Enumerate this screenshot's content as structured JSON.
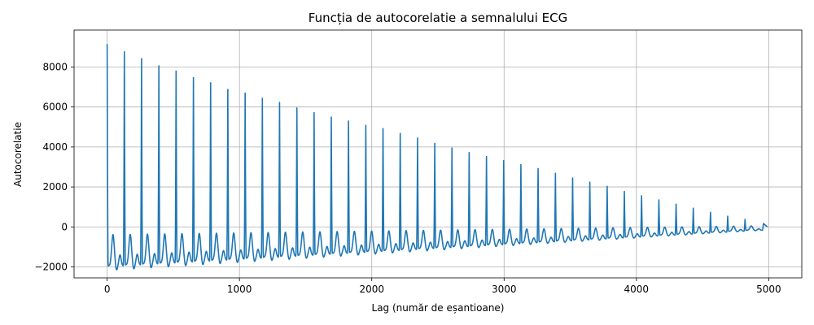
{
  "chart_data": {
    "type": "line",
    "title": "Funcția de autocorelatie a semnalului ECG",
    "xlabel": "Lag (număr de eșantioane)",
    "ylabel": "Autocorelatie",
    "xlim": [
      -250,
      5250
    ],
    "ylim": [
      -2550,
      9850
    ],
    "xticks": [
      0,
      1000,
      2000,
      3000,
      4000,
      5000
    ],
    "yticks": [
      -2000,
      0,
      2000,
      4000,
      6000,
      8000
    ],
    "xtick_labels": [
      "0",
      "1000",
      "2000",
      "3000",
      "4000",
      "5000"
    ],
    "ytick_labels": [
      "−2000",
      "0",
      "2000",
      "4000",
      "6000",
      "8000"
    ],
    "grid": true,
    "legend": "none",
    "series": [
      {
        "color": "#1f77b4",
        "x_start": 0,
        "x_end": 4990,
        "initial_value": 9150,
        "beat_period_lags": 130.3,
        "peaks": [
          {
            "lag": 130,
            "value": 8760
          },
          {
            "lag": 260,
            "value": 8420
          },
          {
            "lag": 391,
            "value": 8060
          },
          {
            "lag": 521,
            "value": 7800
          },
          {
            "lag": 652,
            "value": 7470
          },
          {
            "lag": 782,
            "value": 7210
          },
          {
            "lag": 912,
            "value": 6880
          },
          {
            "lag": 1043,
            "value": 6700
          },
          {
            "lag": 1173,
            "value": 6440
          },
          {
            "lag": 1303,
            "value": 6230
          },
          {
            "lag": 1434,
            "value": 5950
          },
          {
            "lag": 1564,
            "value": 5720
          },
          {
            "lag": 1694,
            "value": 5500
          },
          {
            "lag": 1824,
            "value": 5300
          },
          {
            "lag": 1955,
            "value": 5080
          },
          {
            "lag": 2085,
            "value": 4920
          },
          {
            "lag": 2215,
            "value": 4680
          },
          {
            "lag": 2346,
            "value": 4450
          },
          {
            "lag": 2476,
            "value": 4180
          },
          {
            "lag": 2606,
            "value": 3950
          },
          {
            "lag": 2736,
            "value": 3720
          },
          {
            "lag": 2867,
            "value": 3520
          },
          {
            "lag": 2997,
            "value": 3320
          },
          {
            "lag": 3127,
            "value": 3120
          },
          {
            "lag": 3257,
            "value": 2920
          },
          {
            "lag": 3388,
            "value": 2680
          },
          {
            "lag": 3518,
            "value": 2450
          },
          {
            "lag": 3648,
            "value": 2240
          },
          {
            "lag": 3779,
            "value": 2030
          },
          {
            "lag": 3909,
            "value": 1780
          },
          {
            "lag": 4039,
            "value": 1560
          },
          {
            "lag": 4170,
            "value": 1350
          },
          {
            "lag": 4300,
            "value": 1140
          },
          {
            "lag": 4430,
            "value": 940
          },
          {
            "lag": 4560,
            "value": 730
          },
          {
            "lag": 4690,
            "value": 540
          },
          {
            "lag": 4821,
            "value": 380
          },
          {
            "lag": 4960,
            "value": 170
          }
        ],
        "trough_start": -1950,
        "trough_end": -120,
        "secondary_bump_start": -380,
        "secondary_bump_end": 60
      }
    ]
  }
}
